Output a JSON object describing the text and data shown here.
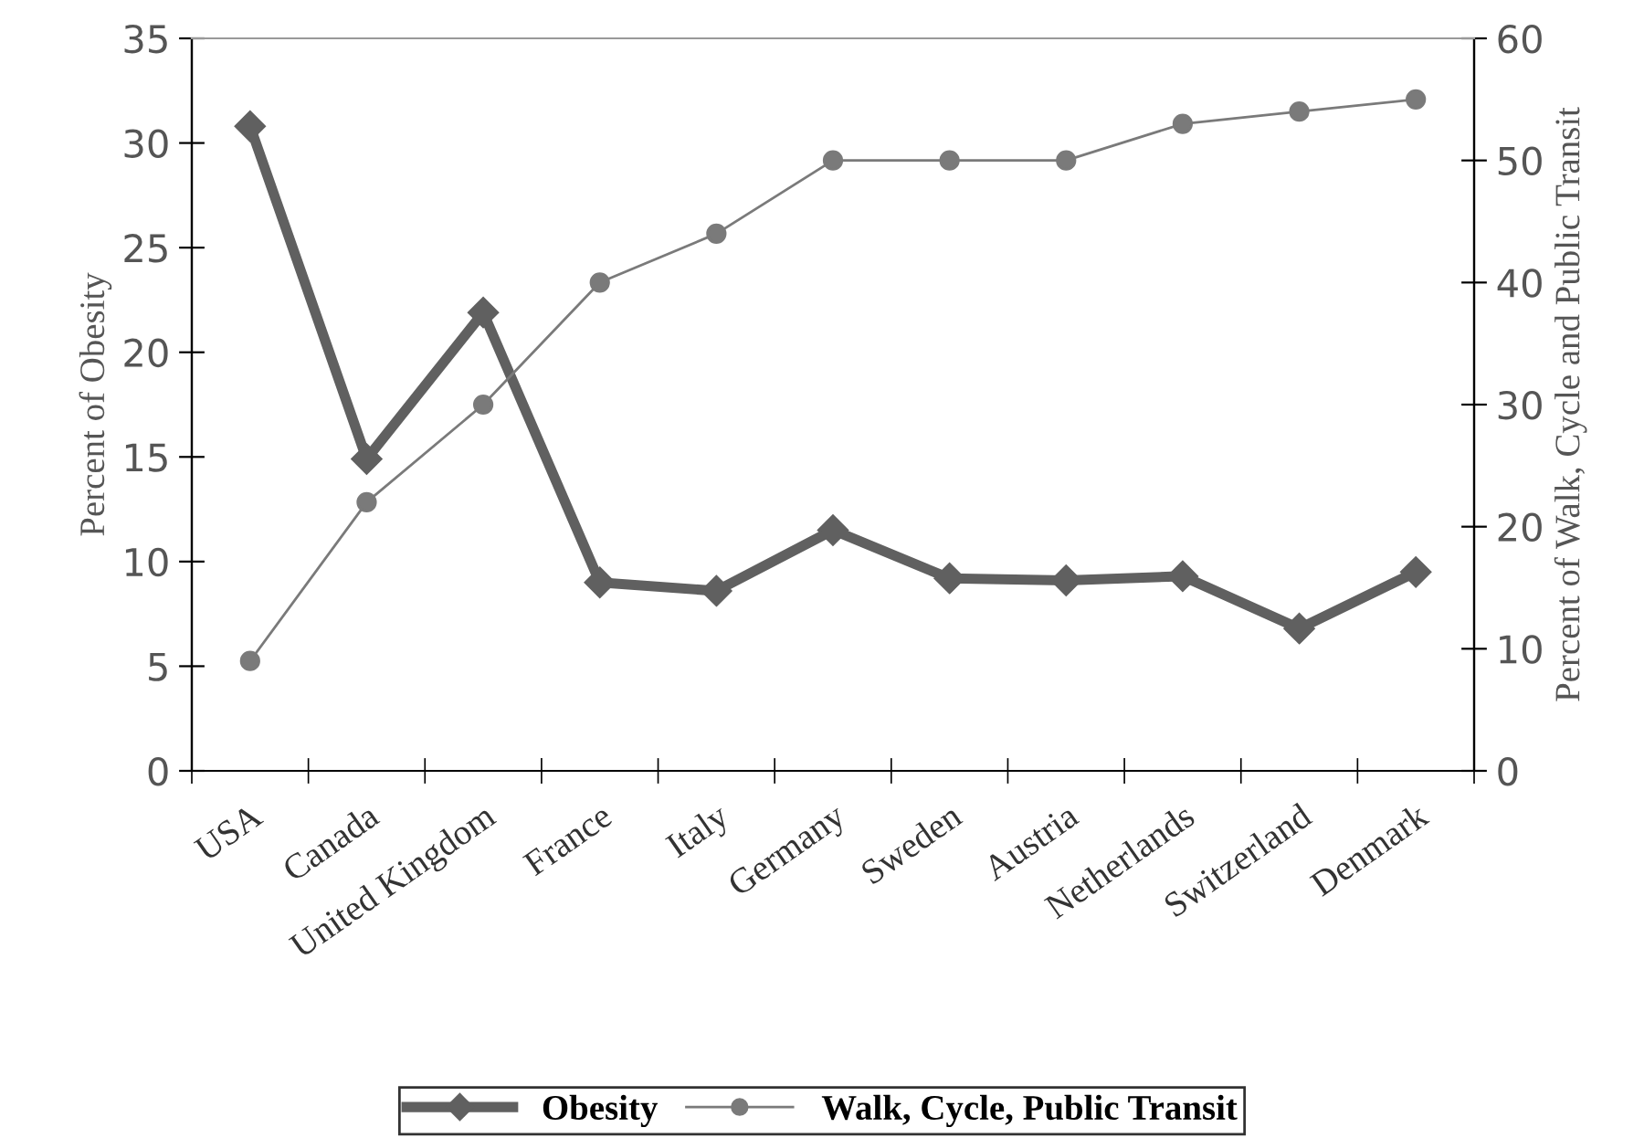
{
  "chart_data": {
    "type": "line",
    "ylabel": "Percent of Obesity",
    "y2label": "Percent of Walk, Cycle and Public Transit",
    "categories": [
      "USA",
      "Canada",
      "United Kingdom",
      "France",
      "Italy",
      "Germany",
      "Sweden",
      "Austria",
      "Netherlands",
      "Switzerland",
      "Denmark"
    ],
    "series": [
      {
        "name": "Obesity",
        "color": "#606060",
        "marker": "diamond",
        "values": [
          30.8,
          14.9,
          21.9,
          9.0,
          8.6,
          11.5,
          9.2,
          9.1,
          9.3,
          6.8,
          9.5
        ]
      },
      {
        "name": "Walk, Cycle, Public Transit",
        "color": "#7a7a7a",
        "marker": "circle",
        "axis": "y2",
        "values": [
          9,
          22,
          30,
          40,
          44,
          50,
          50,
          50,
          53,
          54,
          55
        ]
      }
    ],
    "ylim": [
      0,
      35
    ],
    "yticks": [
      0,
      5,
      10,
      15,
      20,
      25,
      30,
      35
    ],
    "y2lim": [
      0,
      60
    ],
    "y2ticks": [
      0,
      10,
      20,
      30,
      40,
      50,
      60
    ],
    "grid": false,
    "legend": "bottom"
  }
}
